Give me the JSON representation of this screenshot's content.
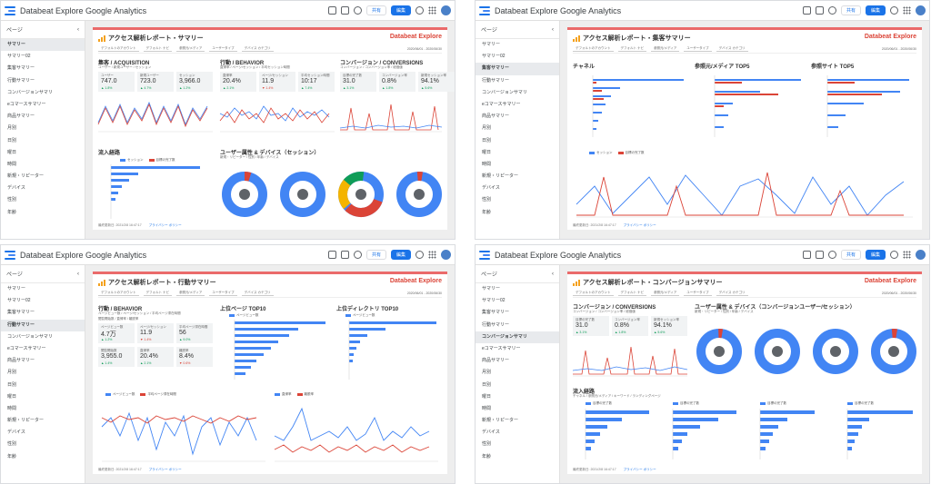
{
  "app": {
    "title": "Databeat Explore Google Analytics",
    "share_label": "共有",
    "edit_label": "編集"
  },
  "sidebar": {
    "header": "ページ",
    "items": [
      "サマリー",
      "サマリー02",
      "集客サマリー",
      "行動サマリー",
      "コンバージョンサマリ",
      "eコマースサマリー",
      "商品サマリー",
      "月別",
      "日別",
      "曜日",
      "時間",
      "新規・リピーター",
      "デバイス",
      "性別",
      "年齢"
    ]
  },
  "brand_text": "Databeat Explore",
  "filters": {
    "account": "デフォルトのアカウント",
    "default": "デフォルト ナビ",
    "source": "参照元/メディア",
    "user_type": "ユーザータイプ",
    "device": "デバイス カテゴリ",
    "date_range": "2020/06/01 - 2020/06/30"
  },
  "footer": {
    "updated": "最終更新日: 2021/2/8 16:47:17",
    "privacy": "プライバシー ポリシー"
  },
  "reports": {
    "summary": {
      "title": "アクセス解析レポート・サマリー",
      "acquisition": {
        "title": "集客 / ACQUISITION",
        "subtitle": "ユーザー / 新規ユーザー / セッション",
        "kpis": [
          {
            "label": "ユーザー",
            "value": "747.0",
            "delta": "▲ 1.8%"
          },
          {
            "label": "新規ユーザー",
            "value": "723.0",
            "delta": "▲ 4.7%"
          },
          {
            "label": "セッション",
            "value": "3,966.0",
            "delta": "▲ 1.2%"
          }
        ]
      },
      "behavior": {
        "title": "行動 / BEHAVIOR",
        "subtitle": "直帰率 / ページ/セッション / 平均セッション時間",
        "kpis": [
          {
            "label": "直帰率",
            "value": "20.4%",
            "delta": "▲ 2.1%"
          },
          {
            "label": "ページ/セッション",
            "value": "11.9",
            "delta": "▼ 1.4%"
          },
          {
            "label": "平均セッション時間",
            "value": "10:17",
            "delta": "▲ 7.4%"
          }
        ]
      },
      "conversions": {
        "title": "コンバージョン / CONVERSIONS",
        "subtitle": "コンバージョン / コンバージョン率 / 総価値",
        "kpis": [
          {
            "label": "目標の完了数",
            "value": "31.0",
            "delta": "▲ 3.1%"
          },
          {
            "label": "コンバージョン率",
            "value": "0.8%",
            "delta": "▲ 1.8%"
          },
          {
            "label": "新規セッション率",
            "value": "94.1%",
            "delta": "▲ 5.6%"
          }
        ]
      },
      "inflow": {
        "title": "流入経路",
        "legend_a": "セッション",
        "legend_b": "目標の完了数"
      },
      "attributes": {
        "title": "ユーザー属性 & デバイス（セッション）",
        "subtitle": "新規・リピーター / 性別 / 年齢 / デバイス"
      }
    },
    "acquisition": {
      "title": "アクセス解析レポート・集客サマリー",
      "channel": "チャネル",
      "source_top5": "参照元/メディア TOP5",
      "site_top5": "参照サイト TOP5",
      "legend_a": "セッション",
      "legend_b": "目標の完了数"
    },
    "behavior": {
      "title": "アクセス解析レポート・行動サマリー",
      "section": "行動 / BEHAVIOR",
      "subtitle": "ページビュー数 / ページ/セッション / 平均ページ滞在時間",
      "subtitle2": "閲覧開始数 / 直帰率 / 離脱率",
      "kpis": [
        {
          "label": "ページビュー数",
          "value": "4.7万",
          "delta": "▲ 1.2%"
        },
        {
          "label": "ページ/セッション",
          "value": "11.9",
          "delta": "▼ 1.4%"
        },
        {
          "label": "平均ページ滞在時間",
          "value": "56",
          "delta": "▲ 9.0%"
        },
        {
          "label": "閲覧開始数",
          "value": "3,955.0",
          "delta": "▲ 1.4%"
        },
        {
          "label": "直帰率",
          "value": "20.4%",
          "delta": "▲ 2.1%"
        },
        {
          "label": "離脱率",
          "value": "8.4%",
          "delta": "▼ 0.6%"
        }
      ],
      "top_pages": "上位ページ TOP10",
      "top_dirs": "上位ディレクトリ TOP10",
      "legend_pv": "ページビュー数",
      "legend_avg": "平均ページ滞在時間",
      "legend_bounce": "直帰率",
      "legend_exit": "離脱率"
    },
    "conversion": {
      "title": "アクセス解析レポート・コンバージョンサマリー",
      "section": "コンバージョン / CONVERSIONS",
      "subtitle": "コンバージョン / コンバージョン率 / 総価値",
      "kpis": [
        {
          "label": "目標の完了数",
          "value": "31.0",
          "delta": "▲ 3.1%"
        },
        {
          "label": "コンバージョン率",
          "value": "0.8%",
          "delta": "▲ 1.8%"
        },
        {
          "label": "新規セッション率",
          "value": "94.1%",
          "delta": "▲ 5.6%"
        }
      ],
      "attributes": "ユーザー属性 & デバイス（コンバージョンユーザー/セッション）",
      "attributes_sub": "新規・リピーター / 性別 / 年齢 / デバイス",
      "inflow": "流入経路",
      "inflow_sub": "チャネル / 参照元/メディア / キーワード / ランディングページ",
      "legend_goal": "目標の完了数"
    }
  },
  "colors": {
    "accent": "#1a73e8",
    "series_blue": "#4285f4",
    "series_red": "#db4437",
    "header_bar": "#ea6a6a"
  }
}
